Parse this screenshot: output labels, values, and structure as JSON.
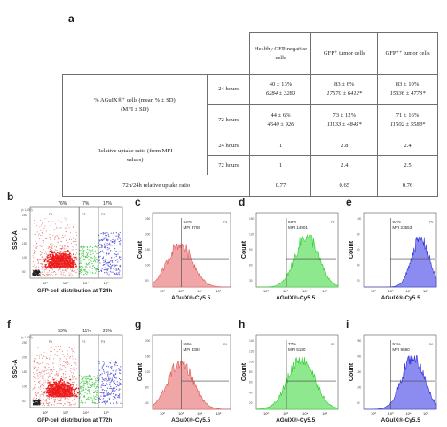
{
  "panels": {
    "a": "a",
    "b": "b",
    "c": "c",
    "d": "d",
    "e": "e",
    "f": "f",
    "g": "g",
    "h": "h",
    "i": "i"
  },
  "table": {
    "headers": [
      "Healthy GFP-negative cells",
      "GFP⁺ tumor cells",
      "GFP⁺⁺ tumor cells"
    ],
    "row1_label": "% AGuIX®⁺ cells (mean % ± SD) (MFI ± SD)",
    "row2_label": "Relative uptake ratio (from MFI values)",
    "row3_label": "72h/24h relative uptake ratio",
    "time_24": "24 hours",
    "time_72": "72 hours",
    "pct_24": [
      "40 ± 13%",
      "83 ± 6%",
      "83 ± 10%"
    ],
    "mfi_24": [
      "6284 ± 3283",
      "17670 ± 6412*",
      "15336 ± 4773*"
    ],
    "pct_72": [
      "44 ± 6%",
      "73 ± 12%",
      "71 ± 16%"
    ],
    "mfi_72": [
      "4640 ± 926",
      "11133 ± 4845*",
      "11502 ± 5588*"
    ],
    "ratio_24": [
      "1",
      "2.8",
      "2.4"
    ],
    "ratio_72": [
      "1",
      "2.4",
      "2.5"
    ],
    "rel_ratio": [
      "0.77",
      "0.65",
      "0.76"
    ]
  },
  "scatter_panels": [
    {
      "id": "b",
      "caption": "GFP-cell distribution at T24h",
      "y_axis": "SSC-A",
      "y_scale": "(x 1,000)",
      "y_ticks": [
        "250",
        "200",
        "150",
        "100",
        "50"
      ],
      "gate_labels": [
        "P1",
        "P2",
        "P3"
      ],
      "gate_pcts": [
        "76%",
        "7%",
        "17%"
      ]
    },
    {
      "id": "f",
      "caption": "GFP-cell distribution at T72h",
      "y_axis": "SSC-A",
      "y_scale": "(x 1,000)",
      "y_ticks": [
        "250",
        "200",
        "150",
        "100",
        "50"
      ],
      "gate_labels": [
        "P1",
        "P2",
        "P3"
      ],
      "gate_pcts": [
        "53%",
        "11%",
        "26%"
      ]
    }
  ],
  "histogram_panels": [
    {
      "id": "c",
      "color": "#e05a5a",
      "fill": "#f0a6a6",
      "pct": "53%",
      "mfi": "MFI 3759",
      "gate": "P4",
      "y_ticks": [
        "250",
        "200",
        "150",
        "100",
        "50"
      ]
    },
    {
      "id": "d",
      "color": "#2fcf2f",
      "fill": "#8ee88e",
      "pct": "89%",
      "mfi": "MFI 14901",
      "gate": "P5",
      "y_ticks": [
        "150",
        "120",
        "90",
        "60",
        "30"
      ]
    },
    {
      "id": "e",
      "color": "#3030d8",
      "fill": "#8c8cf0",
      "pct": "93%",
      "mfi": "MFI 23553",
      "gate": "P6",
      "y_ticks": [
        "100",
        "80",
        "60",
        "40",
        "20"
      ]
    },
    {
      "id": "g",
      "color": "#e05a5a",
      "fill": "#f0a6a6",
      "pct": "58%",
      "mfi": "MFI 3384",
      "gate": "P4",
      "y_ticks": [
        "200",
        "160",
        "120",
        "80",
        "40"
      ]
    },
    {
      "id": "h",
      "color": "#2fcf2f",
      "fill": "#8ee88e",
      "pct": "77%",
      "mfi": "MFI 5180",
      "gate": "P5",
      "y_ticks": [
        "140",
        "120",
        "100",
        "80",
        "60",
        "40",
        "20"
      ]
    },
    {
      "id": "i",
      "color": "#3030d8",
      "fill": "#8c8cf0",
      "pct": "91%",
      "mfi": "MFI 9580",
      "gate": "P6",
      "y_ticks": [
        "250",
        "200",
        "150",
        "100",
        "50"
      ]
    }
  ],
  "axes": {
    "count": "Count",
    "x_label": "AGuIX®-Cy5.5",
    "x_ticks": [
      "10²",
      "10³",
      "10⁴",
      "10⁵"
    ]
  }
}
